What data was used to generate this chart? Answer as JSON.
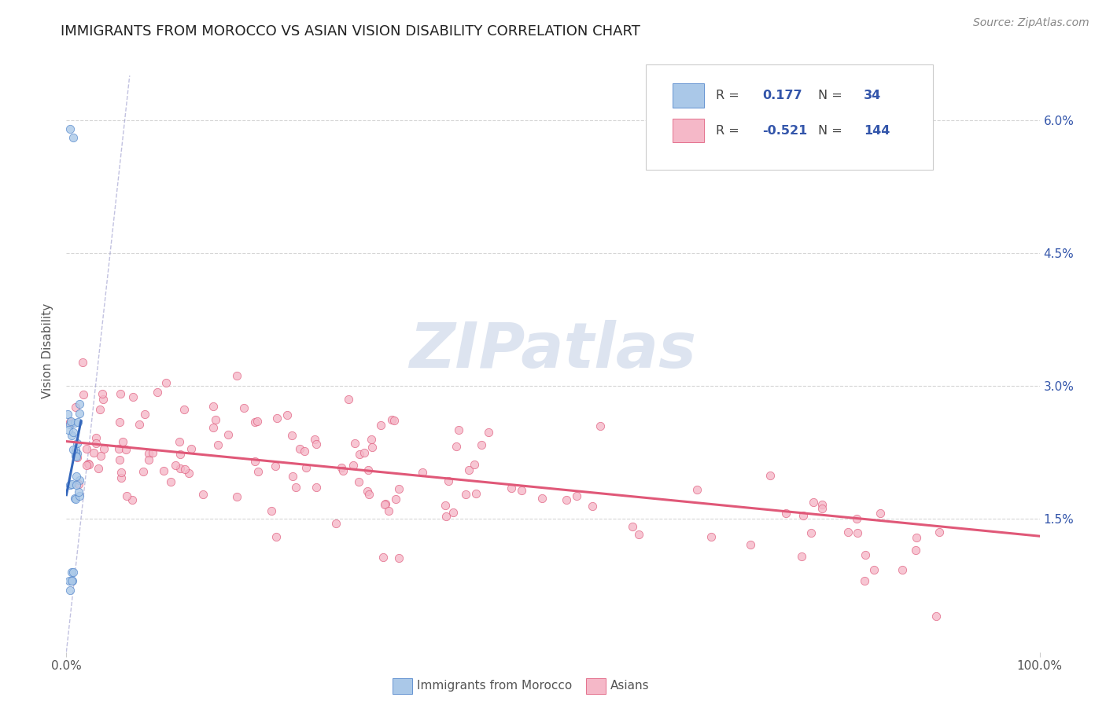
{
  "title": "IMMIGRANTS FROM MOROCCO VS ASIAN VISION DISABILITY CORRELATION CHART",
  "source": "Source: ZipAtlas.com",
  "ylabel": "Vision Disability",
  "y_tick_labels": [
    "1.5%",
    "3.0%",
    "4.5%",
    "6.0%"
  ],
  "y_tick_values": [
    0.015,
    0.03,
    0.045,
    0.06
  ],
  "x_min": 0.0,
  "x_max": 1.0,
  "y_min": 0.0,
  "y_max": 0.068,
  "legend_R1": "0.177",
  "legend_N1": "34",
  "legend_R2": "-0.521",
  "legend_N2": "144",
  "blue_fill": "#aac8e8",
  "blue_edge": "#5588cc",
  "pink_fill": "#f5b8c8",
  "pink_edge": "#e06080",
  "blue_trend_color": "#3366bb",
  "pink_trend_color": "#e05878",
  "ref_line_color": "#9999cc",
  "grid_color": "#cccccc",
  "bg_color": "#ffffff",
  "label_color": "#3355aa",
  "text_color": "#555555",
  "watermark_color": "#dde4f0",
  "title_color": "#222222",
  "source_color": "#888888"
}
